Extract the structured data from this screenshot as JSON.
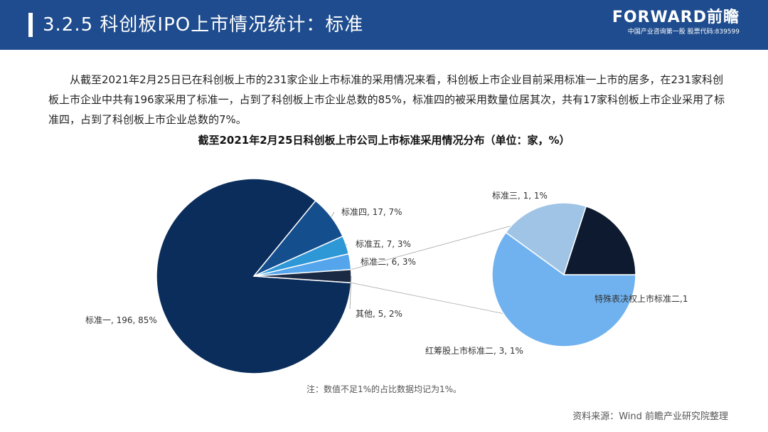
{
  "header": {
    "title": "3.2.5 科创板IPO上市情况统计：标准",
    "brand": "FORWARD前瞻",
    "slogan": "中国产业咨询第一股 股票代码:839599"
  },
  "paragraph": "从截至2021年2月25日已在科创板上市的231家企业上市标准的采用情况来看，科创板上市企业目前采用标准一上市的居多，在231家科创板上市企业中共有196家采用了标准一，占到了科创板上市企业总数的85%，标准四的被采用数量位居其次，共有17家科创板上市企业采用了标准四，占到了科创板上市企业总数的7%。",
  "chart_data": {
    "type": "pie",
    "title": "截至2021年2月25日科创板上市公司上市标准采用情况分布（单位：家，%）",
    "main": [
      {
        "name": "标准一",
        "value": 196,
        "percent": 85,
        "label": "标准一, 196, 85%",
        "color": "#0b2d5b"
      },
      {
        "name": "标准四",
        "value": 17,
        "percent": 7,
        "label": "标准四, 17, 7%",
        "color": "#154e8c"
      },
      {
        "name": "标准五",
        "value": 7,
        "percent": 3,
        "label": "标准五, 7, 3%",
        "color": "#2e97d6"
      },
      {
        "name": "标准二",
        "value": 6,
        "percent": 3,
        "label": "标准二, 6, 3%",
        "color": "#54a5ec"
      },
      {
        "name": "其他",
        "value": 5,
        "percent": 2,
        "label": "其他, 5, 2%",
        "color": "#1b2a44"
      }
    ],
    "breakdown_of": "其他",
    "breakdown": [
      {
        "name": "红筹股上市标准二",
        "value": 3,
        "percent": 1,
        "label": "红筹股上市标准二, 3, 1%",
        "color": "#6fb2ef"
      },
      {
        "name": "标准三",
        "value": 1,
        "percent": 1,
        "label": "标准三, 1, 1%",
        "color": "#9fc4e6"
      },
      {
        "name": "特殊表决权上市标准二",
        "value": 1,
        "label": "特殊表决权上市标准二,1",
        "color": "#0d1a30"
      }
    ]
  },
  "note": "注：数值不足1%的占比数据均记为1%。",
  "source": "资料来源：Wind 前瞻产业研究院整理"
}
